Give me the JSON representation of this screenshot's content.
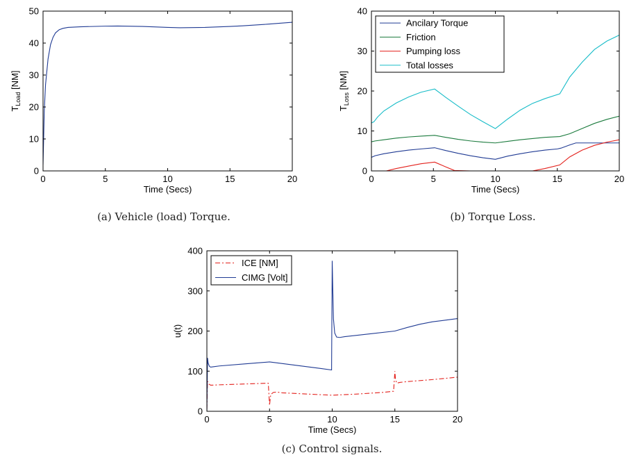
{
  "captions": {
    "a": "(a) Vehicle (load) Torque.",
    "b": "(b) Torque Loss.",
    "c": "(c) Control signals."
  },
  "chart_data": [
    {
      "id": "a",
      "type": "line",
      "xlabel": "Time (Secs)",
      "ylabel": {
        "main": "T",
        "sub": "Load",
        "suffix": " [NM]"
      },
      "xlim": [
        0,
        20
      ],
      "ylim": [
        0,
        50
      ],
      "xticks": [
        0,
        5,
        10,
        15,
        20
      ],
      "yticks": [
        0,
        10,
        20,
        30,
        40,
        50
      ],
      "grid": false,
      "series": [
        {
          "color": "#1f3a93",
          "dash": "",
          "x": [
            0,
            0.1,
            0.2,
            0.4,
            0.6,
            0.8,
            1.0,
            1.3,
            1.6,
            2.0,
            3,
            5,
            6,
            8,
            10,
            11,
            13,
            15,
            16,
            18,
            20
          ],
          "y": [
            2,
            19,
            27,
            35,
            39.5,
            41.8,
            43.2,
            44.2,
            44.6,
            44.9,
            45.1,
            45.3,
            45.35,
            45.2,
            44.9,
            44.8,
            44.9,
            45.2,
            45.4,
            45.9,
            46.5
          ]
        }
      ]
    },
    {
      "id": "b",
      "type": "line",
      "xlabel": "Time (Secs)",
      "ylabel": {
        "main": "T",
        "sub": "Loss",
        "suffix": " [NM]"
      },
      "xlim": [
        0,
        20
      ],
      "ylim": [
        0,
        40
      ],
      "xticks": [
        0,
        5,
        10,
        15,
        20
      ],
      "yticks": [
        0,
        10,
        20,
        30,
        40
      ],
      "grid": false,
      "legend": "top-left",
      "series": [
        {
          "name": "Ancilary Torque",
          "color": "#1f3a93",
          "dash": "",
          "x": [
            0,
            0.3,
            1,
            2,
            3,
            4,
            5.1,
            6,
            7,
            8,
            9,
            10,
            11,
            12,
            13,
            14,
            15,
            15.3,
            16,
            16.5,
            18,
            20
          ],
          "y": [
            3.4,
            3.8,
            4.3,
            4.8,
            5.2,
            5.5,
            5.8,
            5.1,
            4.4,
            3.8,
            3.3,
            2.9,
            3.7,
            4.3,
            4.8,
            5.2,
            5.5,
            5.7,
            6.5,
            7.0,
            7.0,
            7.0
          ]
        },
        {
          "name": "Friction",
          "color": "#1a7a3c",
          "dash": "",
          "x": [
            0,
            0.3,
            1,
            2,
            3,
            4,
            5.1,
            6,
            7,
            8,
            9,
            10,
            11,
            12,
            13,
            14,
            15.2,
            16,
            17,
            18,
            19,
            20
          ],
          "y": [
            7.3,
            7.5,
            7.8,
            8.2,
            8.5,
            8.7,
            8.9,
            8.4,
            7.9,
            7.5,
            7.2,
            7.0,
            7.4,
            7.8,
            8.1,
            8.4,
            8.6,
            9.3,
            10.6,
            11.9,
            12.9,
            13.7
          ]
        },
        {
          "name": "Pumping loss",
          "color": "#e3201b",
          "dash": "",
          "x": [
            0,
            1.2,
            2,
            3,
            4,
            5.1,
            6,
            6.7,
            8,
            10,
            12,
            13,
            14,
            15.2,
            16,
            17,
            18,
            19,
            20
          ],
          "y": [
            0,
            0,
            0.6,
            1.2,
            1.8,
            2.2,
            1.0,
            0.1,
            0,
            0,
            0,
            0,
            0.6,
            1.5,
            3.5,
            5.2,
            6.4,
            7.2,
            7.8
          ]
        },
        {
          "name": "Total losses",
          "color": "#17bcc8",
          "dash": "",
          "x": [
            0,
            0.2,
            0.5,
            1,
            2,
            3,
            4,
            5.1,
            6,
            7,
            8,
            9,
            10,
            11,
            12,
            13,
            14,
            15.2,
            16,
            17,
            18,
            19,
            20
          ],
          "y": [
            12,
            12.3,
            13.5,
            15.0,
            17.0,
            18.5,
            19.7,
            20.5,
            18.4,
            16.2,
            14.1,
            12.3,
            10.6,
            13.0,
            15.2,
            16.9,
            18.1,
            19.3,
            23.5,
            27.2,
            30.4,
            32.5,
            34.0
          ]
        }
      ]
    },
    {
      "id": "c",
      "type": "line",
      "xlabel": "Time (Secs)",
      "ylabel": {
        "main": "u(t)",
        "sub": "",
        "suffix": ""
      },
      "xlim": [
        0,
        20
      ],
      "ylim": [
        0,
        400
      ],
      "xticks": [
        0,
        5,
        10,
        15,
        20
      ],
      "yticks": [
        0,
        100,
        200,
        300,
        400
      ],
      "grid": false,
      "legend": "top-left",
      "series": [
        {
          "name": "ICE [NM]",
          "color": "#e3201b",
          "dash": "7,3,2,3",
          "x": [
            0,
            0.05,
            0.15,
            0.3,
            1,
            3,
            4.9,
            5.0,
            5.05,
            5.1,
            5.3,
            5.6,
            6,
            8,
            10,
            12,
            14,
            14.9,
            15.0,
            15.05,
            15.15,
            15.4,
            16,
            18,
            20
          ],
          "y": [
            5,
            75,
            68,
            65,
            66,
            68,
            70,
            15,
            30,
            42,
            47,
            48,
            46,
            43,
            40,
            43,
            47,
            50,
            100,
            80,
            70,
            72,
            74,
            79,
            85
          ]
        },
        {
          "name": "CIMG [Volt]",
          "color": "#1f3a93",
          "dash": "",
          "x": [
            0,
            0.05,
            0.1,
            0.2,
            0.3,
            0.5,
            1,
            3,
            5,
            7,
            9,
            9.95,
            10.0,
            10.05,
            10.1,
            10.2,
            10.35,
            10.6,
            11,
            13,
            15,
            16,
            17,
            18,
            20
          ],
          "y": [
            0,
            133,
            120,
            112,
            110,
            111,
            113,
            118,
            123,
            115,
            107,
            103,
            375,
            300,
            230,
            195,
            185,
            184,
            186,
            193,
            200,
            209,
            217,
            223,
            231
          ]
        }
      ]
    }
  ]
}
